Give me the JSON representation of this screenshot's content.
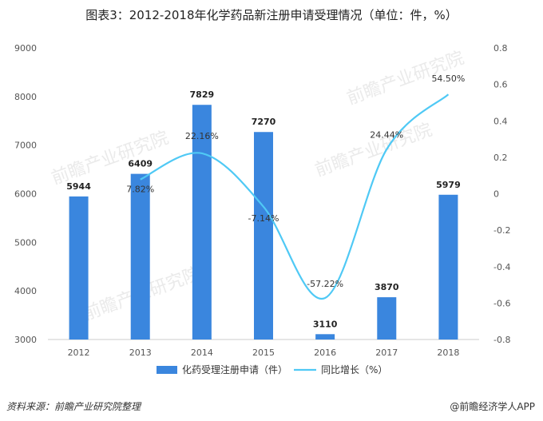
{
  "title": "图表3：2012-2018年化学药品新注册申请受理情况（单位：件，%）",
  "footer": {
    "source": "资料来源：前瞻产业研究院整理",
    "brand": "@前瞻经济学人APP"
  },
  "watermark": "前瞻产业研究院",
  "colors": {
    "bar": "#3a86de",
    "line": "#4fc9f5",
    "axis": "#cccccc"
  },
  "chart_data": {
    "type": "bar",
    "categories": [
      "2012",
      "2013",
      "2014",
      "2015",
      "2016",
      "2017",
      "2018"
    ],
    "series": [
      {
        "name": "化药受理注册申请（件）",
        "type": "bar",
        "axis": "left",
        "values": [
          5944,
          6409,
          7829,
          7270,
          3110,
          3870,
          5979
        ],
        "labels": [
          "5944",
          "6409",
          "7829",
          "7270",
          "3110",
          "3870",
          "5979"
        ]
      },
      {
        "name": "同比增长（%）",
        "type": "line",
        "axis": "right",
        "x": [
          "2013",
          "2014",
          "2015",
          "2016",
          "2017",
          "2018"
        ],
        "values": [
          0.0782,
          0.2216,
          -0.0714,
          -0.5722,
          0.2444,
          0.545
        ],
        "labels": [
          "7.82%",
          "22.16%",
          "-7.14%",
          "-57.22%",
          "24.44%",
          "54.50%"
        ]
      }
    ],
    "y_left": {
      "min": 3000,
      "max": 9000,
      "ticks": [
        "3000",
        "4000",
        "5000",
        "6000",
        "7000",
        "8000",
        "9000"
      ]
    },
    "y_right": {
      "min": -0.8,
      "max": 0.8,
      "ticks": [
        "-0.8",
        "-0.6",
        "-0.4",
        "-0.2",
        "0",
        "0.2",
        "0.4",
        "0.6",
        "0.8"
      ]
    },
    "grid": false,
    "legend": "bottom"
  }
}
